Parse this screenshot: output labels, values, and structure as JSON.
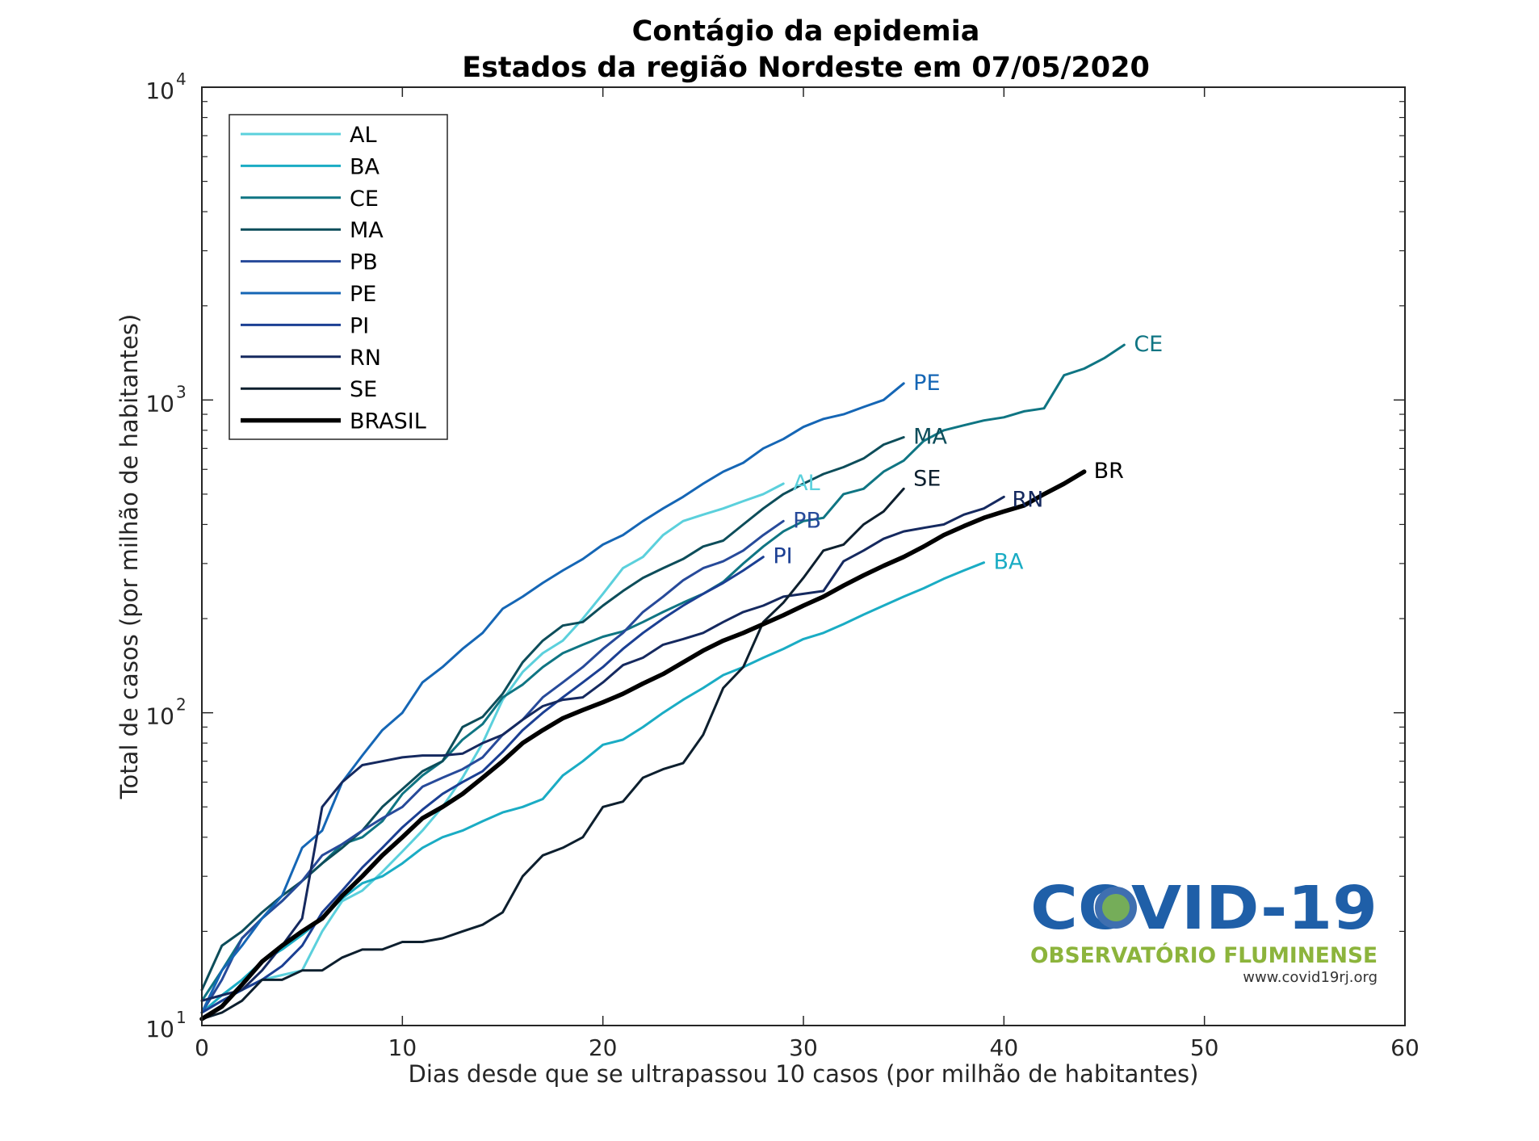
{
  "chart_data": {
    "type": "line",
    "title": "Contágio da epidemia",
    "subtitle": "Estados da região Nordeste em 07/05/2020",
    "xlabel": "Dias desde que se ultrapassou 10 casos (por milhão de habitantes)",
    "ylabel": "Total de casos (por milhão de habitantes)",
    "xlim": [
      0,
      60
    ],
    "ylim": [
      10,
      10000
    ],
    "yscale": "log",
    "x_ticks": [
      0,
      10,
      20,
      30,
      40,
      50,
      60
    ],
    "y_ticks": [
      {
        "value": 10,
        "base": "10",
        "exp": "1"
      },
      {
        "value": 100,
        "base": "10",
        "exp": "2"
      },
      {
        "value": 1000,
        "base": "10",
        "exp": "3"
      },
      {
        "value": 10000,
        "base": "10",
        "exp": "4"
      }
    ],
    "grid": false,
    "legend_position": "top-left",
    "series": [
      {
        "name": "AL",
        "label": "AL",
        "color": "#5bd0dc",
        "width": 3,
        "x": [
          0,
          1,
          2,
          3,
          4,
          5,
          6,
          7,
          8,
          9,
          10,
          11,
          12,
          13,
          14,
          15,
          16,
          17,
          18,
          19,
          20,
          21,
          22,
          23,
          24,
          25,
          26,
          27,
          28,
          29
        ],
        "y": [
          11,
          12,
          13,
          14,
          14.5,
          15,
          20,
          25,
          27,
          31,
          36,
          42,
          50,
          62,
          80,
          110,
          135,
          155,
          170,
          200,
          240,
          290,
          315,
          370,
          410,
          430,
          450,
          475,
          500,
          540
        ]
      },
      {
        "name": "BA",
        "label": "BA",
        "color": "#1aacc4",
        "width": 3,
        "x": [
          0,
          1,
          2,
          3,
          4,
          5,
          6,
          7,
          8,
          9,
          10,
          11,
          12,
          13,
          14,
          15,
          16,
          17,
          18,
          19,
          20,
          21,
          22,
          23,
          24,
          25,
          26,
          27,
          28,
          29,
          30,
          31,
          32,
          33,
          34,
          35,
          36,
          37,
          38,
          39
        ],
        "y": [
          11,
          12.5,
          14,
          16,
          17.5,
          19.5,
          22,
          25.5,
          28.5,
          30,
          33,
          37,
          40,
          42,
          45,
          48,
          50,
          53,
          63,
          70,
          79,
          82,
          90,
          100,
          110,
          120,
          132,
          140,
          150,
          160,
          172,
          180,
          192,
          206,
          220,
          235,
          250,
          268,
          285,
          302
        ]
      },
      {
        "name": "CE",
        "label": "CE",
        "color": "#0f7583",
        "width": 3,
        "x": [
          0,
          1,
          2,
          3,
          4,
          5,
          6,
          7,
          8,
          9,
          10,
          11,
          12,
          13,
          14,
          15,
          16,
          17,
          18,
          19,
          20,
          21,
          22,
          23,
          24,
          25,
          26,
          27,
          28,
          29,
          30,
          31,
          32,
          33,
          34,
          35,
          36,
          37,
          38,
          39,
          40,
          41,
          42,
          43,
          44,
          45,
          46
        ],
        "y": [
          12,
          15,
          19,
          22,
          25,
          29,
          33,
          38,
          40,
          45,
          55,
          63,
          70,
          82,
          92,
          112,
          123,
          140,
          155,
          165,
          175,
          182,
          195,
          210,
          225,
          240,
          262,
          300,
          340,
          380,
          410,
          420,
          500,
          520,
          590,
          640,
          740,
          800,
          830,
          860,
          880,
          920,
          940,
          1200,
          1260,
          1360,
          1500
        ]
      },
      {
        "name": "MA",
        "label": "MA",
        "color": "#0d4d5a",
        "width": 3,
        "x": [
          0,
          1,
          2,
          3,
          4,
          5,
          6,
          7,
          8,
          9,
          10,
          11,
          12,
          13,
          14,
          15,
          16,
          17,
          18,
          19,
          20,
          21,
          22,
          23,
          24,
          25,
          26,
          27,
          28,
          29,
          30,
          31,
          32,
          33,
          34,
          35
        ],
        "y": [
          13,
          18,
          20,
          23,
          26,
          29,
          33,
          37,
          42,
          50,
          57,
          65,
          70,
          90,
          97,
          115,
          145,
          170,
          190,
          195,
          220,
          245,
          270,
          290,
          310,
          340,
          355,
          400,
          450,
          500,
          540,
          580,
          610,
          650,
          720,
          760
        ]
      },
      {
        "name": "PB",
        "label": "PB",
        "color": "#274a9a",
        "width": 3,
        "x": [
          0,
          1,
          2,
          3,
          4,
          5,
          6,
          7,
          8,
          9,
          10,
          11,
          12,
          13,
          14,
          15,
          16,
          17,
          18,
          19,
          20,
          21,
          22,
          23,
          24,
          25,
          26,
          27,
          28,
          29
        ],
        "y": [
          11,
          14,
          19,
          22,
          25,
          29,
          35,
          38,
          42,
          46,
          50,
          58,
          62,
          66,
          72,
          85,
          95,
          112,
          125,
          140,
          160,
          180,
          210,
          235,
          265,
          290,
          305,
          330,
          370,
          410
        ]
      },
      {
        "name": "PE",
        "label": "PE",
        "color": "#1566b5",
        "width": 3,
        "x": [
          0,
          1,
          2,
          3,
          4,
          5,
          6,
          7,
          8,
          9,
          10,
          11,
          12,
          13,
          14,
          15,
          16,
          17,
          18,
          19,
          20,
          21,
          22,
          23,
          24,
          25,
          26,
          27,
          28,
          29,
          30,
          31,
          32,
          33,
          34,
          35
        ],
        "y": [
          11,
          15,
          18,
          22,
          26,
          37,
          42,
          60,
          73,
          88,
          100,
          125,
          140,
          160,
          180,
          215,
          235,
          260,
          285,
          310,
          345,
          370,
          410,
          450,
          490,
          540,
          590,
          630,
          700,
          750,
          820,
          870,
          900,
          950,
          1000,
          1130
        ]
      },
      {
        "name": "PI",
        "label": "PI",
        "color": "#1b3f93",
        "width": 3,
        "x": [
          0,
          1,
          2,
          3,
          4,
          5,
          6,
          7,
          8,
          9,
          10,
          11,
          12,
          13,
          14,
          15,
          16,
          17,
          18,
          19,
          20,
          21,
          22,
          23,
          24,
          25,
          26,
          27,
          28
        ],
        "y": [
          11,
          12,
          13,
          14,
          15.5,
          18,
          23,
          27,
          32,
          37,
          43,
          49,
          55,
          60,
          65,
          75,
          88,
          100,
          112,
          125,
          140,
          160,
          180,
          200,
          220,
          240,
          260,
          285,
          315
        ]
      },
      {
        "name": "RN",
        "label": "RN",
        "color": "#15295f",
        "width": 3,
        "x": [
          0,
          1,
          2,
          3,
          4,
          5,
          6,
          7,
          8,
          9,
          10,
          11,
          12,
          13,
          14,
          15,
          16,
          17,
          18,
          19,
          20,
          21,
          22,
          23,
          24,
          25,
          26,
          27,
          28,
          29,
          30,
          31,
          32,
          33,
          34,
          35,
          36,
          37,
          38,
          39,
          40
        ],
        "y": [
          12,
          12.5,
          13,
          15,
          18,
          22,
          50,
          60,
          68,
          70,
          72,
          73,
          73,
          74,
          80,
          85,
          95,
          105,
          110,
          112,
          125,
          142,
          150,
          165,
          172,
          180,
          195,
          210,
          220,
          235,
          240,
          245,
          305,
          330,
          360,
          380,
          390,
          400,
          430,
          450,
          490
        ]
      },
      {
        "name": "SE",
        "label": "SE",
        "color": "#0d1f2e",
        "width": 3,
        "x": [
          0,
          1,
          2,
          3,
          4,
          5,
          6,
          7,
          8,
          9,
          10,
          11,
          12,
          13,
          14,
          15,
          16,
          17,
          18,
          19,
          20,
          21,
          22,
          23,
          24,
          25,
          26,
          27,
          28,
          29,
          30,
          31,
          32,
          33,
          34,
          35
        ],
        "y": [
          10.5,
          11,
          12,
          14,
          14,
          15,
          15,
          16.5,
          17.5,
          17.5,
          18.5,
          18.5,
          19,
          20,
          21,
          23,
          30,
          35,
          37,
          40,
          50,
          52,
          62,
          66,
          69,
          85,
          120,
          140,
          195,
          225,
          270,
          330,
          345,
          400,
          440,
          520
        ]
      },
      {
        "name": "BRASIL",
        "label": "BR",
        "color": "#000000",
        "width": 5.5,
        "x": [
          0,
          1,
          2,
          3,
          4,
          5,
          6,
          7,
          8,
          9,
          10,
          11,
          12,
          13,
          14,
          15,
          16,
          17,
          18,
          19,
          20,
          21,
          22,
          23,
          24,
          25,
          26,
          27,
          28,
          29,
          30,
          31,
          32,
          33,
          34,
          35,
          36,
          37,
          38,
          39,
          40,
          41,
          42,
          43,
          44
        ],
        "y": [
          10.5,
          11.5,
          13.5,
          16,
          18,
          20,
          22,
          26,
          30,
          35,
          40,
          46,
          50,
          55,
          62,
          70,
          80,
          88,
          96,
          102,
          108,
          115,
          124,
          133,
          145,
          158,
          170,
          180,
          192,
          205,
          220,
          235,
          255,
          275,
          295,
          315,
          340,
          370,
          395,
          420,
          440,
          460,
          500,
          540,
          590
        ]
      }
    ]
  },
  "logo": {
    "main": "COVID-19",
    "sub": "OBSERVATÓRIO FLUMINENSE",
    "url": "www.covid19rj.org"
  }
}
